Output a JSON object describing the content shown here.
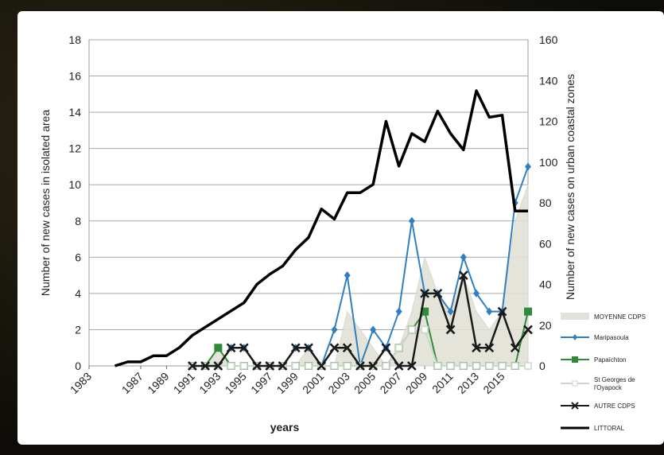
{
  "chart_data": {
    "type": "line",
    "title": "",
    "xlabel": "years",
    "ylabel_left": "Number of new cases in isolated area",
    "ylabel_right": "Number of new cases on urban coastal zones",
    "x_tick_labels": [
      "1983",
      "1987",
      "1989",
      "1991",
      "1993",
      "1995",
      "1997",
      "1999",
      "2001",
      "2003",
      "2005",
      "2007",
      "2009",
      "2011",
      "2013",
      "2015"
    ],
    "xlim": [
      1983,
      2017
    ],
    "ylim_left": [
      0,
      18
    ],
    "ylim_right": [
      0,
      160
    ],
    "y_ticks_left": [
      "0",
      "2",
      "4",
      "6",
      "8",
      "10",
      "12",
      "14",
      "16",
      "18"
    ],
    "y_ticks_right": [
      "0",
      "20",
      "40",
      "60",
      "80",
      "100",
      "120",
      "140",
      "160"
    ],
    "grid": "horizontal",
    "legend_position": "right",
    "series": [
      {
        "name": "MOYENNE CDPS",
        "kind": "area",
        "axis": "left",
        "color": "#e3e2d8",
        "x": [
          1991,
          1992,
          1993,
          1994,
          1995,
          1996,
          1997,
          1998,
          1999,
          2000,
          2001,
          2002,
          2003,
          2004,
          2005,
          2006,
          2007,
          2008,
          2009,
          2010,
          2011,
          2012,
          2013,
          2014,
          2015,
          2016,
          2017
        ],
        "y": [
          0,
          0,
          1,
          0,
          0,
          0,
          0,
          0,
          0,
          1,
          0,
          0,
          3,
          2,
          1,
          0,
          1,
          3,
          6,
          4,
          3,
          5,
          3,
          2,
          3,
          8,
          10
        ]
      },
      {
        "name": "Maripasoula",
        "kind": "line",
        "axis": "left",
        "color": "#2f7fc1",
        "marker": "diamond",
        "x": [
          1991,
          1992,
          1993,
          1994,
          1995,
          1996,
          1997,
          1998,
          1999,
          2000,
          2001,
          2002,
          2003,
          2004,
          2005,
          2006,
          2007,
          2008,
          2009,
          2010,
          2011,
          2012,
          2013,
          2014,
          2015,
          2016,
          2017
        ],
        "y": [
          0,
          0,
          0,
          1,
          1,
          0,
          0,
          0,
          1,
          1,
          0,
          2,
          5,
          0,
          2,
          1,
          3,
          8,
          4,
          4,
          3,
          6,
          4,
          3,
          3,
          9,
          11
        ]
      },
      {
        "name": "Papaïchton",
        "kind": "line",
        "axis": "left",
        "color": "#2e8b3a",
        "marker": "square",
        "x": [
          1991,
          1992,
          1993,
          1994,
          1995,
          1996,
          1997,
          1998,
          1999,
          2000,
          2001,
          2002,
          2003,
          2004,
          2005,
          2006,
          2007,
          2008,
          2009,
          2010,
          2011,
          2012,
          2013,
          2014,
          2015,
          2016,
          2017
        ],
        "y": [
          0,
          0,
          1,
          0,
          0,
          0,
          0,
          0,
          0,
          0,
          0,
          0,
          0,
          0,
          0,
          0,
          1,
          2,
          3,
          0,
          0,
          0,
          0,
          0,
          0,
          0,
          3
        ]
      },
      {
        "name": "St Georges de l'Oyapock",
        "kind": "line",
        "axis": "left",
        "color": "#c9d7c9",
        "marker": "square-open",
        "x": [
          1991,
          1992,
          1993,
          1994,
          1995,
          1996,
          1997,
          1998,
          1999,
          2000,
          2001,
          2002,
          2003,
          2004,
          2005,
          2006,
          2007,
          2008,
          2009,
          2010,
          2011,
          2012,
          2013,
          2014,
          2015,
          2016,
          2017
        ],
        "y": [
          0,
          0,
          0,
          0,
          0,
          0,
          0,
          0,
          0,
          0,
          0,
          0,
          0,
          0,
          0,
          0,
          1,
          2,
          2,
          0,
          0,
          0,
          0,
          0,
          0,
          0,
          0
        ]
      },
      {
        "name": "AUTRE CDPS",
        "kind": "line",
        "axis": "left",
        "color": "#1a1a1a",
        "marker": "x",
        "x": [
          1991,
          1992,
          1993,
          1994,
          1995,
          1996,
          1997,
          1998,
          1999,
          2000,
          2001,
          2002,
          2003,
          2004,
          2005,
          2006,
          2007,
          2008,
          2009,
          2010,
          2011,
          2012,
          2013,
          2014,
          2015,
          2016,
          2017
        ],
        "y": [
          0,
          0,
          0,
          1,
          1,
          0,
          0,
          0,
          1,
          1,
          0,
          1,
          1,
          0,
          0,
          1,
          0,
          0,
          4,
          4,
          2,
          5,
          1,
          1,
          3,
          1,
          2
        ]
      },
      {
        "name": "LITTORAL",
        "kind": "line",
        "axis": "right",
        "color": "#000000",
        "marker": "none",
        "x": [
          1985,
          1986,
          1987,
          1988,
          1989,
          1990,
          1991,
          1992,
          1993,
          1994,
          1995,
          1996,
          1997,
          1998,
          1999,
          2000,
          2001,
          2002,
          2003,
          2004,
          2005,
          2006,
          2007,
          2008,
          2009,
          2010,
          2011,
          2012,
          2013,
          2014,
          2015,
          2016,
          2017
        ],
        "y": [
          0,
          2,
          2,
          5,
          5,
          9,
          15,
          19,
          23,
          27,
          31,
          40,
          45,
          49,
          57,
          63,
          77,
          72,
          85,
          85,
          89,
          120,
          98,
          114,
          110,
          125,
          114,
          106,
          135,
          122,
          123,
          76,
          76
        ]
      }
    ]
  }
}
